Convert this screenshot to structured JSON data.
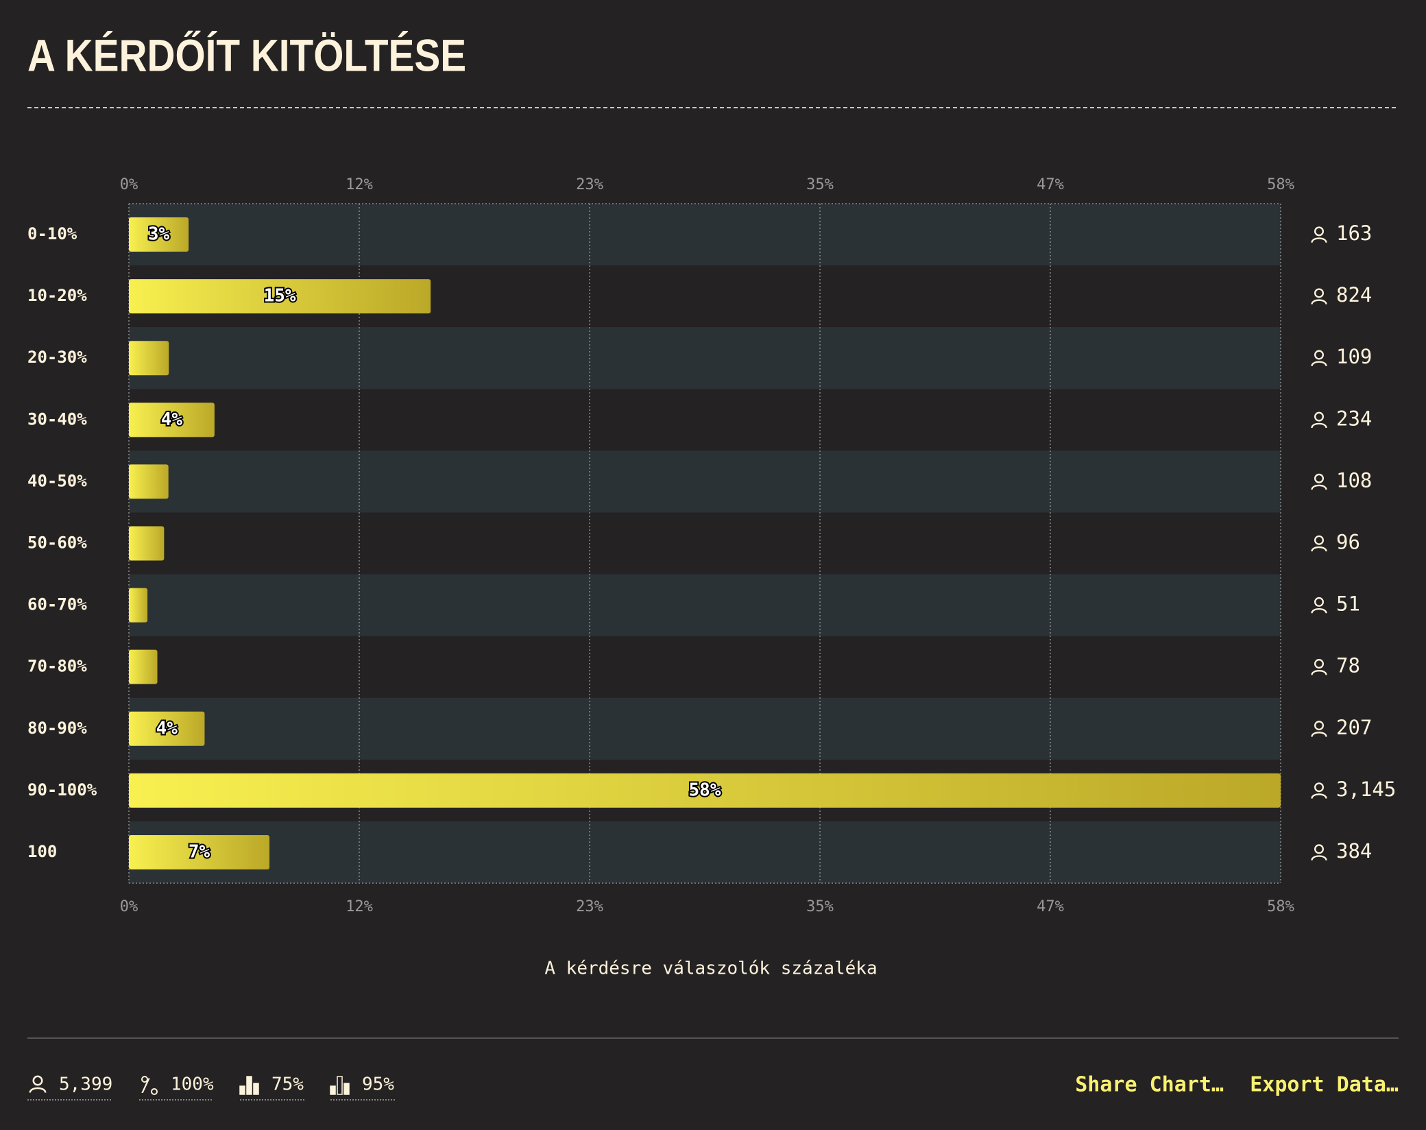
{
  "chart_data": {
    "type": "bar",
    "orientation": "horizontal",
    "title": "A KÉRDŐÍT KITÖLTÉSE",
    "categories": [
      "0-10%",
      "10-20%",
      "20-30%",
      "30-40%",
      "40-50%",
      "50-60%",
      "60-70%",
      "70-80%",
      "80-90%",
      "90-100%",
      "100"
    ],
    "values": [
      3.02,
      15.26,
      2.02,
      4.33,
      2.0,
      1.78,
      0.94,
      1.44,
      3.83,
      58.25,
      7.11
    ],
    "value_labels": [
      "3%",
      "15%",
      null,
      "4%",
      null,
      null,
      null,
      null,
      "4%",
      "58%",
      "7%"
    ],
    "counts": [
      163,
      824,
      109,
      234,
      108,
      96,
      51,
      78,
      207,
      3145,
      384
    ],
    "count_labels": [
      null,
      null,
      null,
      null,
      null,
      null,
      null,
      null,
      null,
      "3,145",
      null
    ],
    "color": "#f8f050",
    "xlim": [
      0,
      58.25
    ],
    "xticks": [
      {
        "value": 0,
        "label": "0%"
      },
      {
        "value": 11.65,
        "label": "12%"
      },
      {
        "value": 23.3,
        "label": "23%"
      },
      {
        "value": 34.95,
        "label": "35%"
      },
      {
        "value": 46.6,
        "label": "47%"
      },
      {
        "value": 58.25,
        "label": "58%"
      }
    ],
    "xlabel": "A kérdésre válaszolók százaléka",
    "grid": true
  },
  "footer": {
    "stats": [
      "5,399",
      "100%",
      "75%",
      "95%"
    ],
    "actions": [
      "Share Chart…",
      "Export Data…"
    ]
  }
}
